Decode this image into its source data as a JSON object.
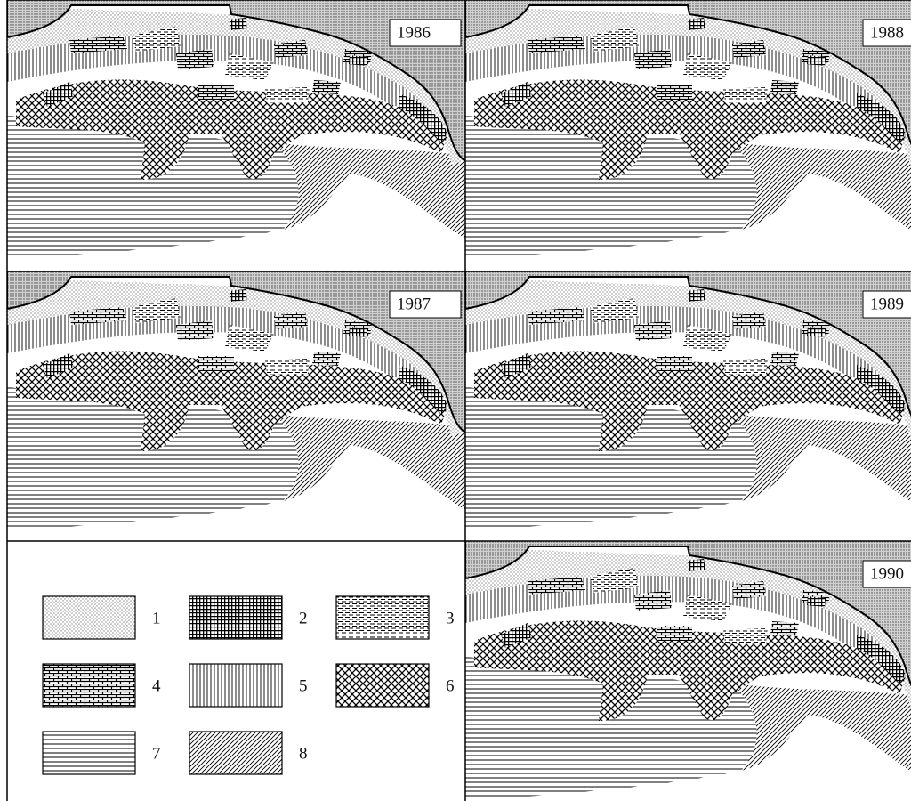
{
  "panels": [
    {
      "year": "1986"
    },
    {
      "year": "1988"
    },
    {
      "year": "1987"
    },
    {
      "year": "1989"
    },
    {
      "year": "1990"
    }
  ],
  "legend": {
    "items": [
      {
        "label": "1"
      },
      {
        "label": "2"
      },
      {
        "label": "3"
      },
      {
        "label": "4"
      },
      {
        "label": "5"
      },
      {
        "label": "6"
      },
      {
        "label": "7"
      },
      {
        "label": "8"
      }
    ]
  }
}
